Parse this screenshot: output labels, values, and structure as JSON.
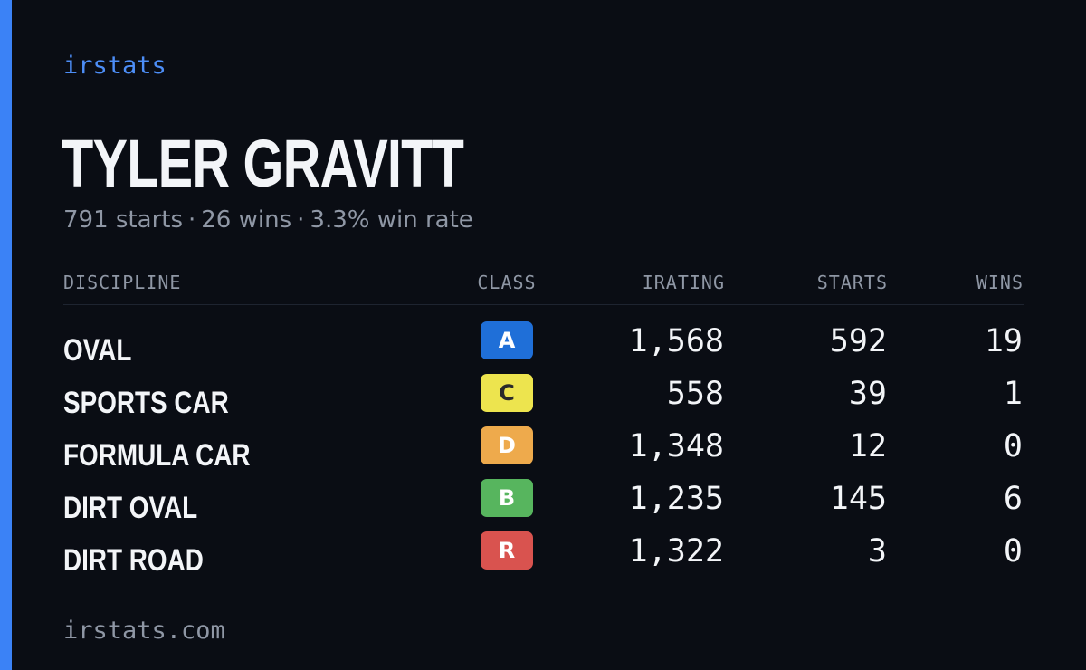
{
  "brand": "irstats",
  "driver": {
    "name": "TYLER GRAVITT",
    "starts_text": "791 starts",
    "wins_text": "26 wins",
    "win_rate_text": "3.3% win rate",
    "separator": "·"
  },
  "table": {
    "headers": {
      "discipline": "DISCIPLINE",
      "class": "CLASS",
      "irating": "IRATING",
      "starts": "STARTS",
      "wins": "WINS"
    },
    "rows": [
      {
        "discipline": "OVAL",
        "class": "A",
        "class_color": "#1f6fd8",
        "class_text_color": "#ffffff",
        "irating": "1,568",
        "starts": "592",
        "wins": "19"
      },
      {
        "discipline": "SPORTS CAR",
        "class": "C",
        "class_color": "#ede44e",
        "class_text_color": "#2a2a2a",
        "irating": "558",
        "starts": "39",
        "wins": "1"
      },
      {
        "discipline": "FORMULA CAR",
        "class": "D",
        "class_color": "#eeaa4c",
        "class_text_color": "#ffffff",
        "irating": "1,348",
        "starts": "12",
        "wins": "0"
      },
      {
        "discipline": "DIRT OVAL",
        "class": "B",
        "class_color": "#57b55e",
        "class_text_color": "#ffffff",
        "irating": "1,235",
        "starts": "145",
        "wins": "6"
      },
      {
        "discipline": "DIRT ROAD",
        "class": "R",
        "class_color": "#d9534f",
        "class_text_color": "#ffffff",
        "irating": "1,322",
        "starts": "3",
        "wins": "0"
      }
    ]
  },
  "footer": {
    "url": "irstats.com"
  },
  "colors": {
    "background": "#0a0d14",
    "accent": "#3b82f6",
    "muted_text": "#8f97a5"
  }
}
